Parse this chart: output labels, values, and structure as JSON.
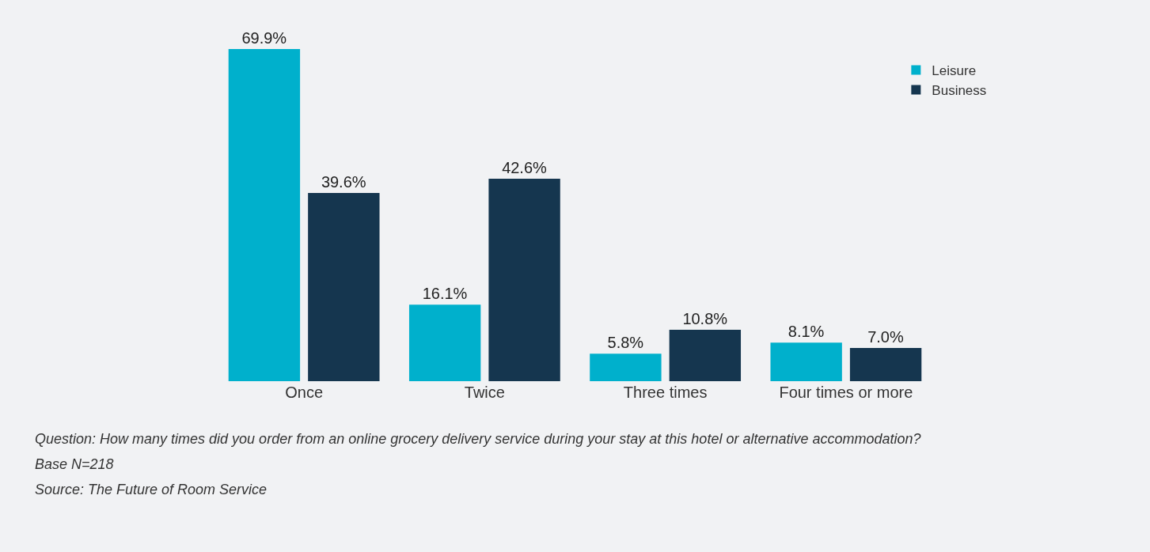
{
  "chart_data": {
    "type": "bar",
    "categories": [
      "Once",
      "Twice",
      "Three times",
      "Four times or more"
    ],
    "series": [
      {
        "name": "Leisure",
        "color": "#00b0cc",
        "values": [
          69.9,
          16.1,
          5.8,
          8.1
        ],
        "value_labels": [
          "69.9%",
          "16.1%",
          "5.8%",
          "8.1%"
        ]
      },
      {
        "name": "Business",
        "color": "#15364f",
        "values": [
          39.6,
          42.6,
          10.8,
          7.0
        ],
        "value_labels": [
          "39.6%",
          "42.6%",
          "10.8%",
          "7.0%"
        ]
      }
    ],
    "legend": "top right",
    "grid": false,
    "annotations": [
      "Question: How many times did you order from an online grocery delivery service during your stay at this hotel or alternative accommodation?",
      "Base N=218",
      "Source: The Future of Room Service"
    ]
  }
}
